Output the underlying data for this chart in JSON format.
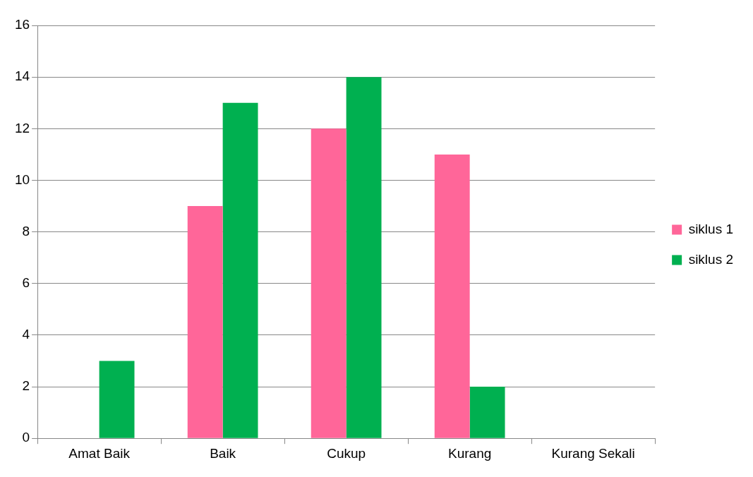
{
  "chart_data": {
    "type": "bar",
    "categories": [
      "Amat Baik",
      "Baik",
      "Cukup",
      "Kurang",
      "Kurang Sekali"
    ],
    "series": [
      {
        "name": "siklus 1",
        "color": "#ff6699",
        "values": [
          0,
          9,
          12,
          11,
          0
        ]
      },
      {
        "name": "siklus 2",
        "color": "#00b050",
        "values": [
          3,
          13,
          14,
          2,
          0
        ]
      }
    ],
    "ylim": [
      0,
      16
    ],
    "yticks": [
      0,
      2,
      4,
      6,
      8,
      10,
      12,
      14,
      16
    ],
    "grid": "y",
    "legend": "right"
  }
}
